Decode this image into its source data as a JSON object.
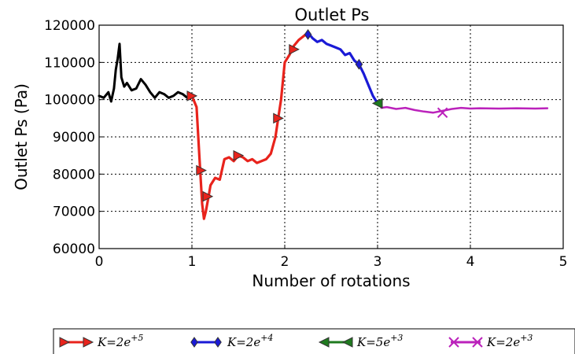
{
  "chart_data": {
    "type": "line",
    "title": "Outlet Ps",
    "xlabel": "Number of rotations",
    "ylabel": "Outlet Ps (Pa)",
    "xlim": [
      0,
      5
    ],
    "ylim": [
      60000,
      120000
    ],
    "xticks": [
      "0",
      "1",
      "2",
      "3",
      "4",
      "5"
    ],
    "yticks": [
      "60000",
      "70000",
      "80000",
      "90000",
      "100000",
      "110000",
      "120000"
    ],
    "grid": true,
    "legend_position": "bottom",
    "series": [
      {
        "name": "",
        "color": "#000000",
        "marker": "none",
        "x": [
          0.0,
          0.05,
          0.1,
          0.13,
          0.16,
          0.18,
          0.2,
          0.22,
          0.24,
          0.27,
          0.3,
          0.35,
          0.4,
          0.45,
          0.5,
          0.55,
          0.6,
          0.65,
          0.7,
          0.75,
          0.8,
          0.85,
          0.9,
          0.95,
          1.0
        ],
        "y": [
          101000,
          100500,
          102000,
          99500,
          103000,
          108000,
          111000,
          115000,
          106000,
          103500,
          104500,
          102500,
          103000,
          105500,
          104000,
          102000,
          100500,
          102000,
          101500,
          100500,
          101000,
          102000,
          101500,
          100500,
          101000
        ]
      },
      {
        "name": "K=2e^{+5}",
        "color": "#e8231c",
        "marker": "right-triangle",
        "x": [
          1.0,
          1.05,
          1.08,
          1.11,
          1.13,
          1.15,
          1.18,
          1.2,
          1.25,
          1.3,
          1.35,
          1.4,
          1.45,
          1.5,
          1.55,
          1.6,
          1.65,
          1.7,
          1.75,
          1.8,
          1.85,
          1.9,
          1.93,
          1.96,
          2.0,
          2.05,
          2.1,
          2.15,
          2.2,
          2.25
        ],
        "y": [
          101000,
          98000,
          85000,
          72000,
          68000,
          70000,
          74000,
          77000,
          79000,
          78500,
          84000,
          84500,
          83500,
          85000,
          84500,
          83500,
          84000,
          83000,
          83500,
          84000,
          85500,
          90000,
          95000,
          100000,
          110000,
          112000,
          114500,
          116000,
          117000,
          118000
        ]
      },
      {
        "name": "K=2e^{+4}",
        "color": "#1a1ad6",
        "marker": "diamond",
        "x": [
          2.25,
          2.3,
          2.35,
          2.4,
          2.45,
          2.5,
          2.55,
          2.6,
          2.65,
          2.7,
          2.75,
          2.8,
          2.85,
          2.9,
          2.95,
          3.0
        ],
        "y": [
          118000,
          116500,
          115500,
          116000,
          115000,
          114500,
          114000,
          113500,
          112000,
          112500,
          110500,
          109500,
          107000,
          104000,
          101000,
          99000
        ]
      },
      {
        "name": "K=5e^{+3}",
        "color": "#1f7a1f",
        "marker": "left-triangle",
        "x": [
          3.0,
          3.02,
          3.04
        ],
        "y": [
          99000,
          98500,
          98200
        ]
      },
      {
        "name": "K=2e^{+3}",
        "color": "#bb22bb",
        "marker": "x",
        "x": [
          3.04,
          3.1,
          3.2,
          3.3,
          3.4,
          3.5,
          3.6,
          3.7,
          3.8,
          3.9,
          4.0,
          4.1,
          4.3,
          4.5,
          4.7,
          4.83
        ],
        "y": [
          97800,
          98000,
          97500,
          97800,
          97200,
          96800,
          96500,
          97000,
          97500,
          97800,
          97600,
          97700,
          97600,
          97700,
          97600,
          97700
        ]
      }
    ],
    "markers": [
      {
        "series": 1,
        "x": 1.0,
        "y": 101000
      },
      {
        "series": 1,
        "x": 1.1,
        "y": 81000
      },
      {
        "series": 1,
        "x": 1.17,
        "y": 74000
      },
      {
        "series": 1,
        "x": 1.5,
        "y": 85000
      },
      {
        "series": 1,
        "x": 1.93,
        "y": 95000
      },
      {
        "series": 1,
        "x": 2.1,
        "y": 113500
      },
      {
        "series": 2,
        "x": 2.25,
        "y": 117500
      },
      {
        "series": 2,
        "x": 2.8,
        "y": 109500
      },
      {
        "series": 3,
        "x": 3.0,
        "y": 99000
      },
      {
        "series": 4,
        "x": 3.7,
        "y": 96500
      }
    ],
    "legend": [
      {
        "base": "K=2e",
        "exp": "+5",
        "color": "#e8231c",
        "marker": "right-triangle"
      },
      {
        "base": "K=2e",
        "exp": "+4",
        "color": "#1a1ad6",
        "marker": "diamond"
      },
      {
        "base": "K=5e",
        "exp": "+3",
        "color": "#1f7a1f",
        "marker": "left-triangle"
      },
      {
        "base": "K=2e",
        "exp": "+3",
        "color": "#bb22bb",
        "marker": "x"
      }
    ]
  }
}
